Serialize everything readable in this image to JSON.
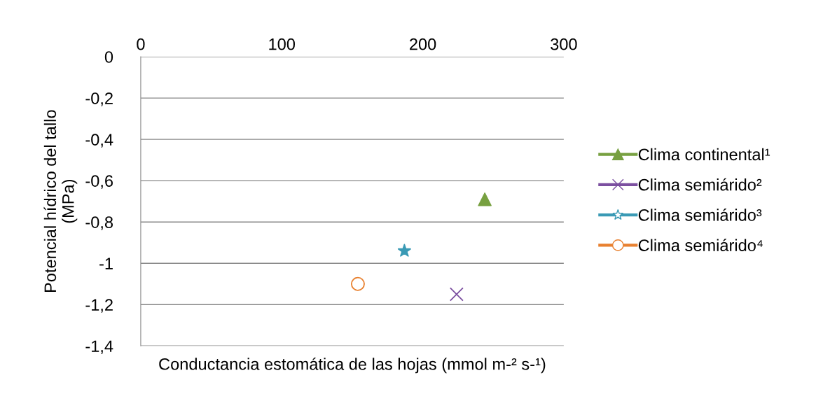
{
  "chart_data": {
    "type": "scatter",
    "xlabel": "Conductancia estomática de las hojas (mmol m-² s-¹)",
    "ylabel": "Potencial hídrico del tallo\n(MPa)",
    "xlim": [
      0,
      300
    ],
    "xticks": [
      0,
      100,
      200,
      300
    ],
    "ylim": [
      -1.4,
      0
    ],
    "yticks": [
      {
        "value": 0,
        "label": "0"
      },
      {
        "value": -0.2,
        "label": "-0,2"
      },
      {
        "value": -0.4,
        "label": "-0,4"
      },
      {
        "value": -0.6,
        "label": "-0,6"
      },
      {
        "value": -0.8,
        "label": "-0,8"
      },
      {
        "value": -1,
        "label": "-1"
      },
      {
        "value": -1.2,
        "label": "-1,2"
      },
      {
        "value": -1.4,
        "label": "-1,4"
      }
    ],
    "grid": "y",
    "legend": "right",
    "series": [
      {
        "name": "Clima continental¹",
        "color": "#77a040",
        "marker": "triangle",
        "x": [
          244
        ],
        "values": [
          -0.69
        ]
      },
      {
        "name": "Clima semiárido²",
        "color": "#7b4fa0",
        "marker": "cross",
        "x": [
          224
        ],
        "values": [
          -1.15
        ]
      },
      {
        "name": "Clima semiárido³",
        "color": "#3a9ab5",
        "marker": "star",
        "x": [
          187
        ],
        "values": [
          -0.94
        ]
      },
      {
        "name": "Clima semiárido⁴",
        "color": "#e8802f",
        "marker": "circle",
        "x": [
          154
        ],
        "values": [
          -1.1
        ]
      }
    ]
  }
}
